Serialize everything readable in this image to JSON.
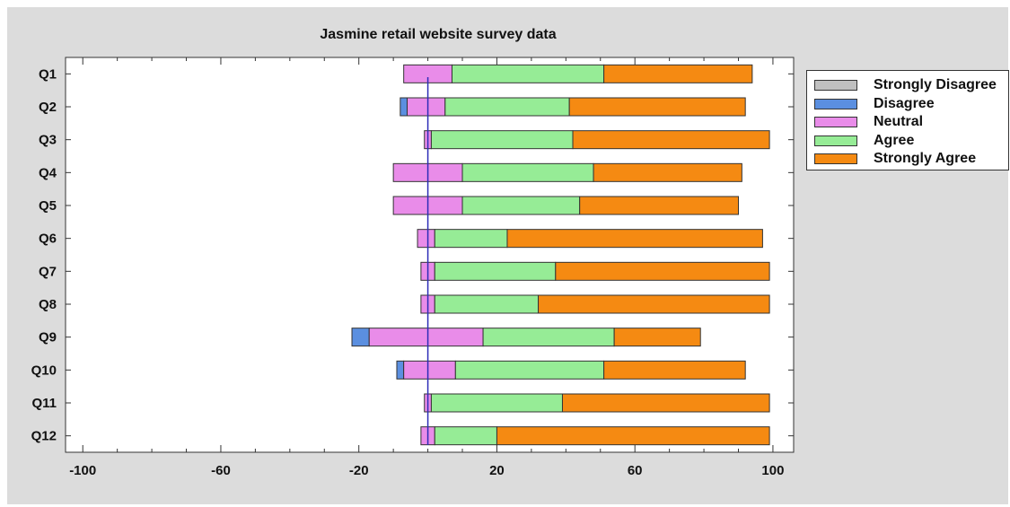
{
  "chart_data": {
    "type": "bar",
    "orientation": "horizontal",
    "stacked": true,
    "title": "Jasmine retail website survey data",
    "categories": [
      "Q1",
      "Q2",
      "Q3",
      "Q4",
      "Q5",
      "Q6",
      "Q7",
      "Q8",
      "Q9",
      "Q10",
      "Q11",
      "Q12"
    ],
    "x_ticks": [
      -100,
      -60,
      -20,
      20,
      60,
      100
    ],
    "xlim": [
      -105,
      106
    ],
    "reference_line_x": 0,
    "legend_position": "right",
    "series": [
      {
        "name": "Strongly Disagree",
        "color": "#c0c0c0",
        "starts": [
          0,
          0,
          0,
          0,
          0,
          0,
          0,
          0,
          0,
          0,
          0,
          0
        ],
        "values": [
          0,
          0,
          0,
          0,
          0,
          0,
          0,
          0,
          0,
          0,
          0,
          0
        ]
      },
      {
        "name": "Disagree",
        "color": "#5b8fe0",
        "starts": [
          -7,
          -8,
          -1,
          -10,
          -10,
          -3,
          -2,
          -2,
          -22,
          -9,
          -1,
          -2
        ],
        "values": [
          0,
          2,
          0,
          0,
          0,
          0,
          0,
          0,
          5,
          2,
          0,
          0
        ]
      },
      {
        "name": "Neutral",
        "color": "#e98ce9",
        "starts": [
          -7,
          -6,
          -1,
          -10,
          -10,
          -3,
          -2,
          -2,
          -17,
          -7,
          -1,
          -2
        ],
        "values": [
          14,
          11,
          2,
          20,
          20,
          5,
          4,
          4,
          33,
          15,
          2,
          4
        ]
      },
      {
        "name": "Agree",
        "color": "#96ec96",
        "starts": [
          7,
          5,
          1,
          10,
          10,
          2,
          2,
          2,
          16,
          8,
          1,
          2
        ],
        "values": [
          44,
          36,
          41,
          38,
          34,
          21,
          35,
          30,
          38,
          43,
          38,
          18
        ]
      },
      {
        "name": "Strongly Agree",
        "color": "#f58a12",
        "starts": [
          51,
          41,
          42,
          48,
          44,
          23,
          37,
          32,
          54,
          51,
          39,
          20
        ],
        "values": [
          43,
          51,
          57,
          43,
          46,
          74,
          62,
          67,
          25,
          41,
          60,
          79
        ]
      }
    ]
  }
}
